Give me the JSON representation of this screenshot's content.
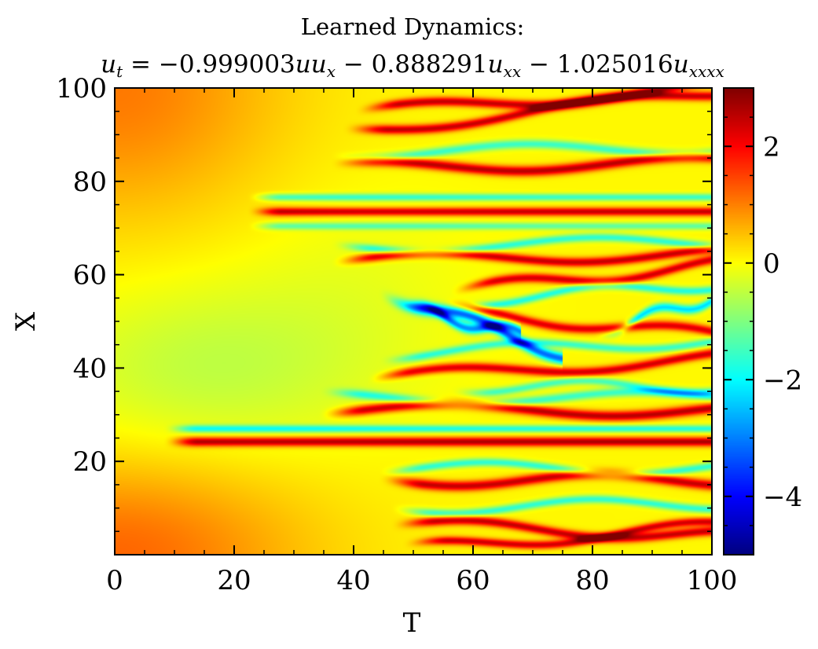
{
  "chart_data": {
    "type": "heatmap",
    "title_line1": "Learned Dynamics:",
    "title_line2": {
      "lhs": "u",
      "lhs_sub": "t",
      "eq": " = ",
      "c1": "−0.999003",
      "t1": "uu",
      "t1_sub": "x",
      "c2": " − 0.888291",
      "t2": "u",
      "t2_sub": "xx",
      "c3": " − 1.025016",
      "t3": "u",
      "t3_sub": "xxxx"
    },
    "xlabel": "T",
    "ylabel": "X",
    "xlim": [
      0,
      100
    ],
    "ylim": [
      0,
      100
    ],
    "x_ticks": [
      0,
      20,
      40,
      60,
      80,
      100
    ],
    "x_tick_labels": [
      "0",
      "20",
      "40",
      "60",
      "80",
      "100"
    ],
    "y_ticks": [
      20,
      40,
      60,
      80,
      100
    ],
    "y_tick_labels": [
      "20",
      "40",
      "60",
      "80",
      "100"
    ],
    "colormap": "jet",
    "color_range": [
      -5,
      3
    ],
    "colorbar_ticks": [
      -4,
      -2,
      0,
      2
    ],
    "colorbar_tick_labels": [
      "−4",
      "−2",
      "0",
      "2"
    ],
    "bands": [
      {
        "x0": 8,
        "x1": 100,
        "y": 24.2,
        "amp": 2.6,
        "w": 1.0
      },
      {
        "x0": 8,
        "x1": 100,
        "y": 27.0,
        "amp": -1.8,
        "w": 0.8
      },
      {
        "x0": 22,
        "x1": 100,
        "y": 73.5,
        "amp": 2.4,
        "w": 0.9
      },
      {
        "x0": 22,
        "x1": 100,
        "y": 76.6,
        "amp": -1.6,
        "w": 0.8
      },
      {
        "x0": 22,
        "x1": 100,
        "y": 70.4,
        "amp": -1.3,
        "w": 0.8
      }
    ],
    "waves": [
      {
        "x0": 38,
        "x1": 100,
        "ya": 31,
        "yb": 31,
        "amp": 2.5,
        "w": 1.1
      },
      {
        "x0": 38,
        "x1": 100,
        "ya": 33.6,
        "yb": 33.6,
        "amp": -1.6,
        "w": 1.0
      },
      {
        "x0": 40,
        "x1": 100,
        "ya": 83,
        "yb": 84,
        "amp": 2.5,
        "w": 1.1
      },
      {
        "x0": 40,
        "x1": 100,
        "ya": 86.2,
        "yb": 87.2,
        "amp": -1.6,
        "w": 1.0
      },
      {
        "x0": 40,
        "x1": 100,
        "ya": 63,
        "yb": 64.5,
        "amp": 2.4,
        "w": 1.0
      },
      {
        "x0": 40,
        "x1": 100,
        "ya": 66,
        "yb": 67,
        "amp": -1.7,
        "w": 0.9
      },
      {
        "x0": 42,
        "x1": 100,
        "ya": 91,
        "yb": 99,
        "amp": 2.4,
        "w": 1.0
      },
      {
        "x0": 44,
        "x1": 100,
        "ya": 95,
        "yb": 100,
        "amp": 2.4,
        "w": 1.0
      },
      {
        "x0": 48,
        "x1": 100,
        "ya": 16,
        "yb": 16,
        "amp": 2.4,
        "w": 1.1
      },
      {
        "x0": 48,
        "x1": 100,
        "ya": 18.5,
        "yb": 18.5,
        "amp": -1.7,
        "w": 0.9
      },
      {
        "x0": 50,
        "x1": 100,
        "ya": 10,
        "yb": 11,
        "amp": -1.7,
        "w": 0.9
      },
      {
        "x0": 50,
        "x1": 100,
        "ya": 6.5,
        "yb": 4,
        "amp": 2.4,
        "w": 1.0
      },
      {
        "x0": 52,
        "x1": 100,
        "ya": 1.5,
        "yb": 6,
        "amp": 2.3,
        "w": 0.9
      },
      {
        "x0": 46,
        "x1": 100,
        "ya": 38,
        "yb": 42,
        "amp": 2.3,
        "w": 1.0
      },
      {
        "x0": 48,
        "x1": 100,
        "ya": 43,
        "yb": 46,
        "amp": -1.6,
        "w": 0.9
      },
      {
        "x0": 60,
        "x1": 100,
        "ya": 57,
        "yb": 62,
        "amp": 2.3,
        "w": 1.0
      },
      {
        "x0": 60,
        "x1": 100,
        "ya": 54.5,
        "yb": 58,
        "amp": -1.8,
        "w": 0.9
      },
      {
        "x0": 58,
        "x1": 100,
        "ya": 52,
        "yb": 47,
        "amp": 2.2,
        "w": 1.0
      },
      {
        "x0": 48,
        "x1": 75,
        "ya": 55,
        "yb": 43,
        "amp": -3.2,
        "w": 1.3
      },
      {
        "x0": 52,
        "x1": 68,
        "ya": 52,
        "yb": 47,
        "amp": -2.8,
        "w": 1.1
      },
      {
        "x0": 84,
        "x1": 100,
        "ya": 49,
        "yb": 55,
        "amp": -2.3,
        "w": 1.0
      },
      {
        "x0": 60,
        "x1": 100,
        "ya": 36,
        "yb": 36,
        "amp": -1.5,
        "w": 0.9
      }
    ]
  }
}
